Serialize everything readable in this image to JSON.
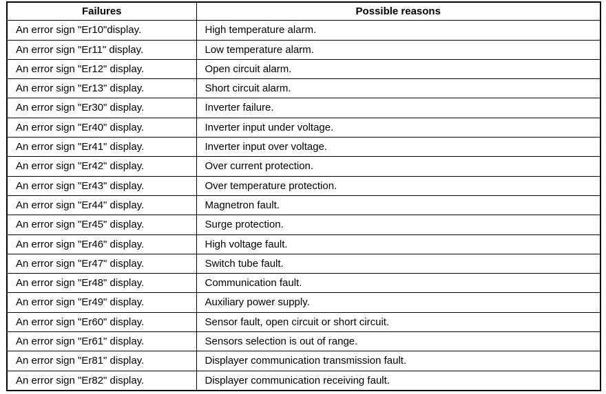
{
  "table": {
    "headers": [
      "Failures",
      "Possible reasons"
    ],
    "rows": [
      {
        "failure": "An error sign \"Er10\"display.",
        "reason": "High temperature alarm."
      },
      {
        "failure": "An error sign \"Er11\" display.",
        "reason": "Low temperature alarm."
      },
      {
        "failure": "An error sign \"Er12\" display.",
        "reason": "Open circuit alarm."
      },
      {
        "failure": "An error sign \"Er13\" display.",
        "reason": "Short circuit alarm."
      },
      {
        "failure": "An error sign \"Er30\" display.",
        "reason": "Inverter failure."
      },
      {
        "failure": "An error sign \"Er40\" display.",
        "reason": "Inverter input under voltage."
      },
      {
        "failure": "An error sign \"Er41\" display.",
        "reason": "Inverter input over voltage."
      },
      {
        "failure": "An error sign \"Er42\" display.",
        "reason": "Over current protection."
      },
      {
        "failure": "An error sign \"Er43\" display.",
        "reason": "Over temperature protection."
      },
      {
        "failure": "An error sign \"Er44\" display.",
        "reason": "Magnetron fault."
      },
      {
        "failure": "An error sign \"Er45\" display.",
        "reason": "Surge protection."
      },
      {
        "failure": "An error sign \"Er46\" display.",
        "reason": "High voltage fault."
      },
      {
        "failure": "An error sign \"Er47\" display.",
        "reason": "Switch tube fault."
      },
      {
        "failure": "An error sign \"Er48\" display.",
        "reason": "Communication fault."
      },
      {
        "failure": "An error sign \"Er49\" display.",
        "reason": "Auxiliary power supply."
      },
      {
        "failure": "An error sign \"Er60\" display.",
        "reason": "Sensor fault, open circuit or short circuit."
      },
      {
        "failure": "An error sign \"Er61\" display.",
        "reason": "Sensors selection is out of range."
      },
      {
        "failure": "An error sign \"Er81\" display.",
        "reason": "Displayer communication transmission fault."
      },
      {
        "failure": "An error sign \"Er82\" display.",
        "reason": "Displayer communication receiving fault."
      }
    ]
  }
}
